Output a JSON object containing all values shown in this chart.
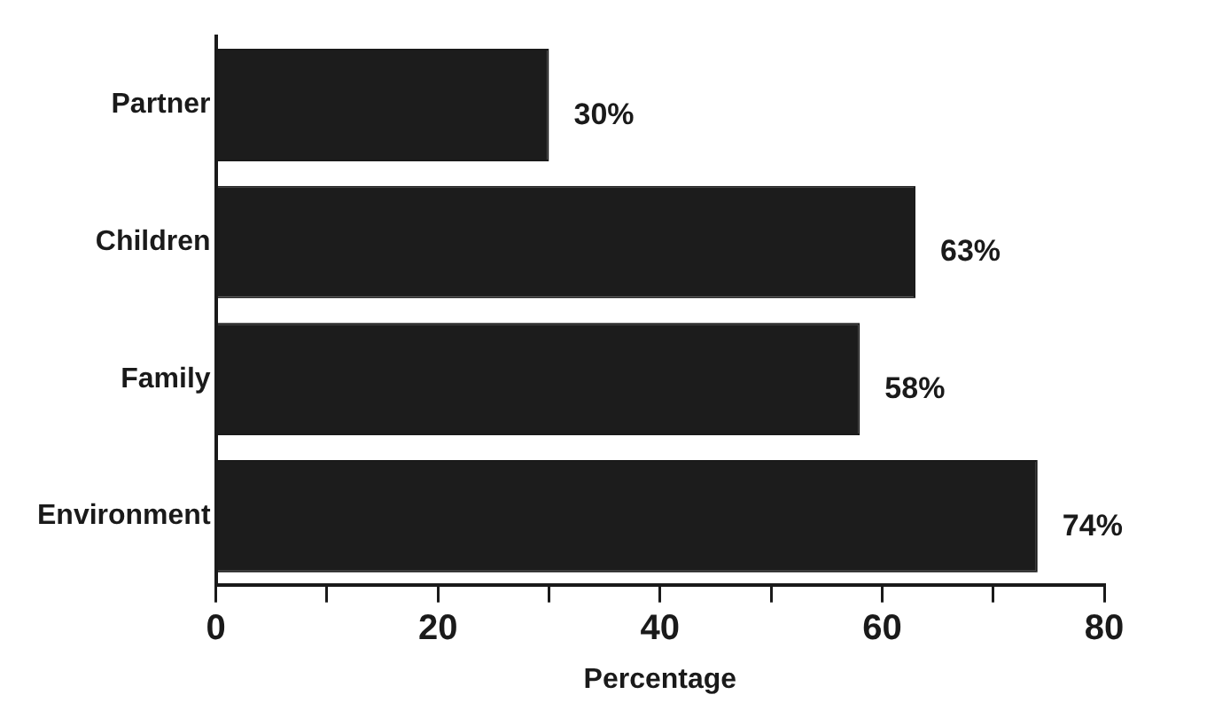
{
  "chart_data": {
    "type": "bar",
    "orientation": "horizontal",
    "categories": [
      "Partner",
      "Children",
      "Family",
      "Environment"
    ],
    "values": [
      30,
      63,
      58,
      74
    ],
    "color": "#1c1c1c",
    "value_labels": [
      "30%",
      "63%",
      "58%",
      "74%"
    ],
    "xlabel": "Percentage",
    "xlim": [
      0,
      80
    ],
    "xticks": [
      0,
      {
        "value": 10,
        "label": null
      },
      20,
      {
        "value": 30,
        "label": null
      },
      40,
      {
        "value": 50,
        "label": null
      },
      60,
      {
        "value": 70,
        "label": null
      },
      80
    ],
    "grid": false,
    "legend": false
  }
}
